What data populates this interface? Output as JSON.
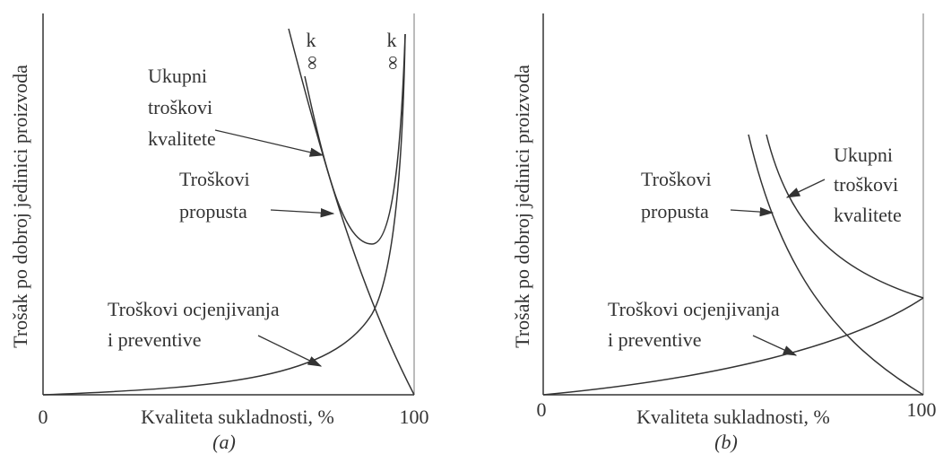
{
  "panels": [
    {
      "y_axis_label": "Trošak po dobroj jedinici proizvoda",
      "x_axis_label": "Kvaliteta sukladnosti, %",
      "x_start": "0",
      "x_end": "100",
      "caption": "(a)",
      "total_label": [
        "Ukupni",
        "troškovi",
        "kvalitete"
      ],
      "failure_label": [
        "Troškovi",
        "propusta"
      ],
      "appraisal_label": [
        "Troškovi ocjenjivanja",
        "i preventive"
      ],
      "markers": [
        {
          "k": "k",
          "inf": "∞"
        },
        {
          "k": "k",
          "inf": "∞"
        }
      ]
    },
    {
      "y_axis_label": "Trošak po dobroj jedinici proizvoda",
      "x_axis_label": "Kvaliteta sukladnosti, %",
      "x_start": "0",
      "x_end": "100",
      "caption": "(b)",
      "total_label": [
        "Ukupni",
        "troškovi",
        "kvalitete"
      ],
      "failure_label": [
        "Troškovi",
        "propusta"
      ],
      "appraisal_label": [
        "Troškovi ocjenjivanja",
        "i preventive"
      ]
    }
  ]
}
